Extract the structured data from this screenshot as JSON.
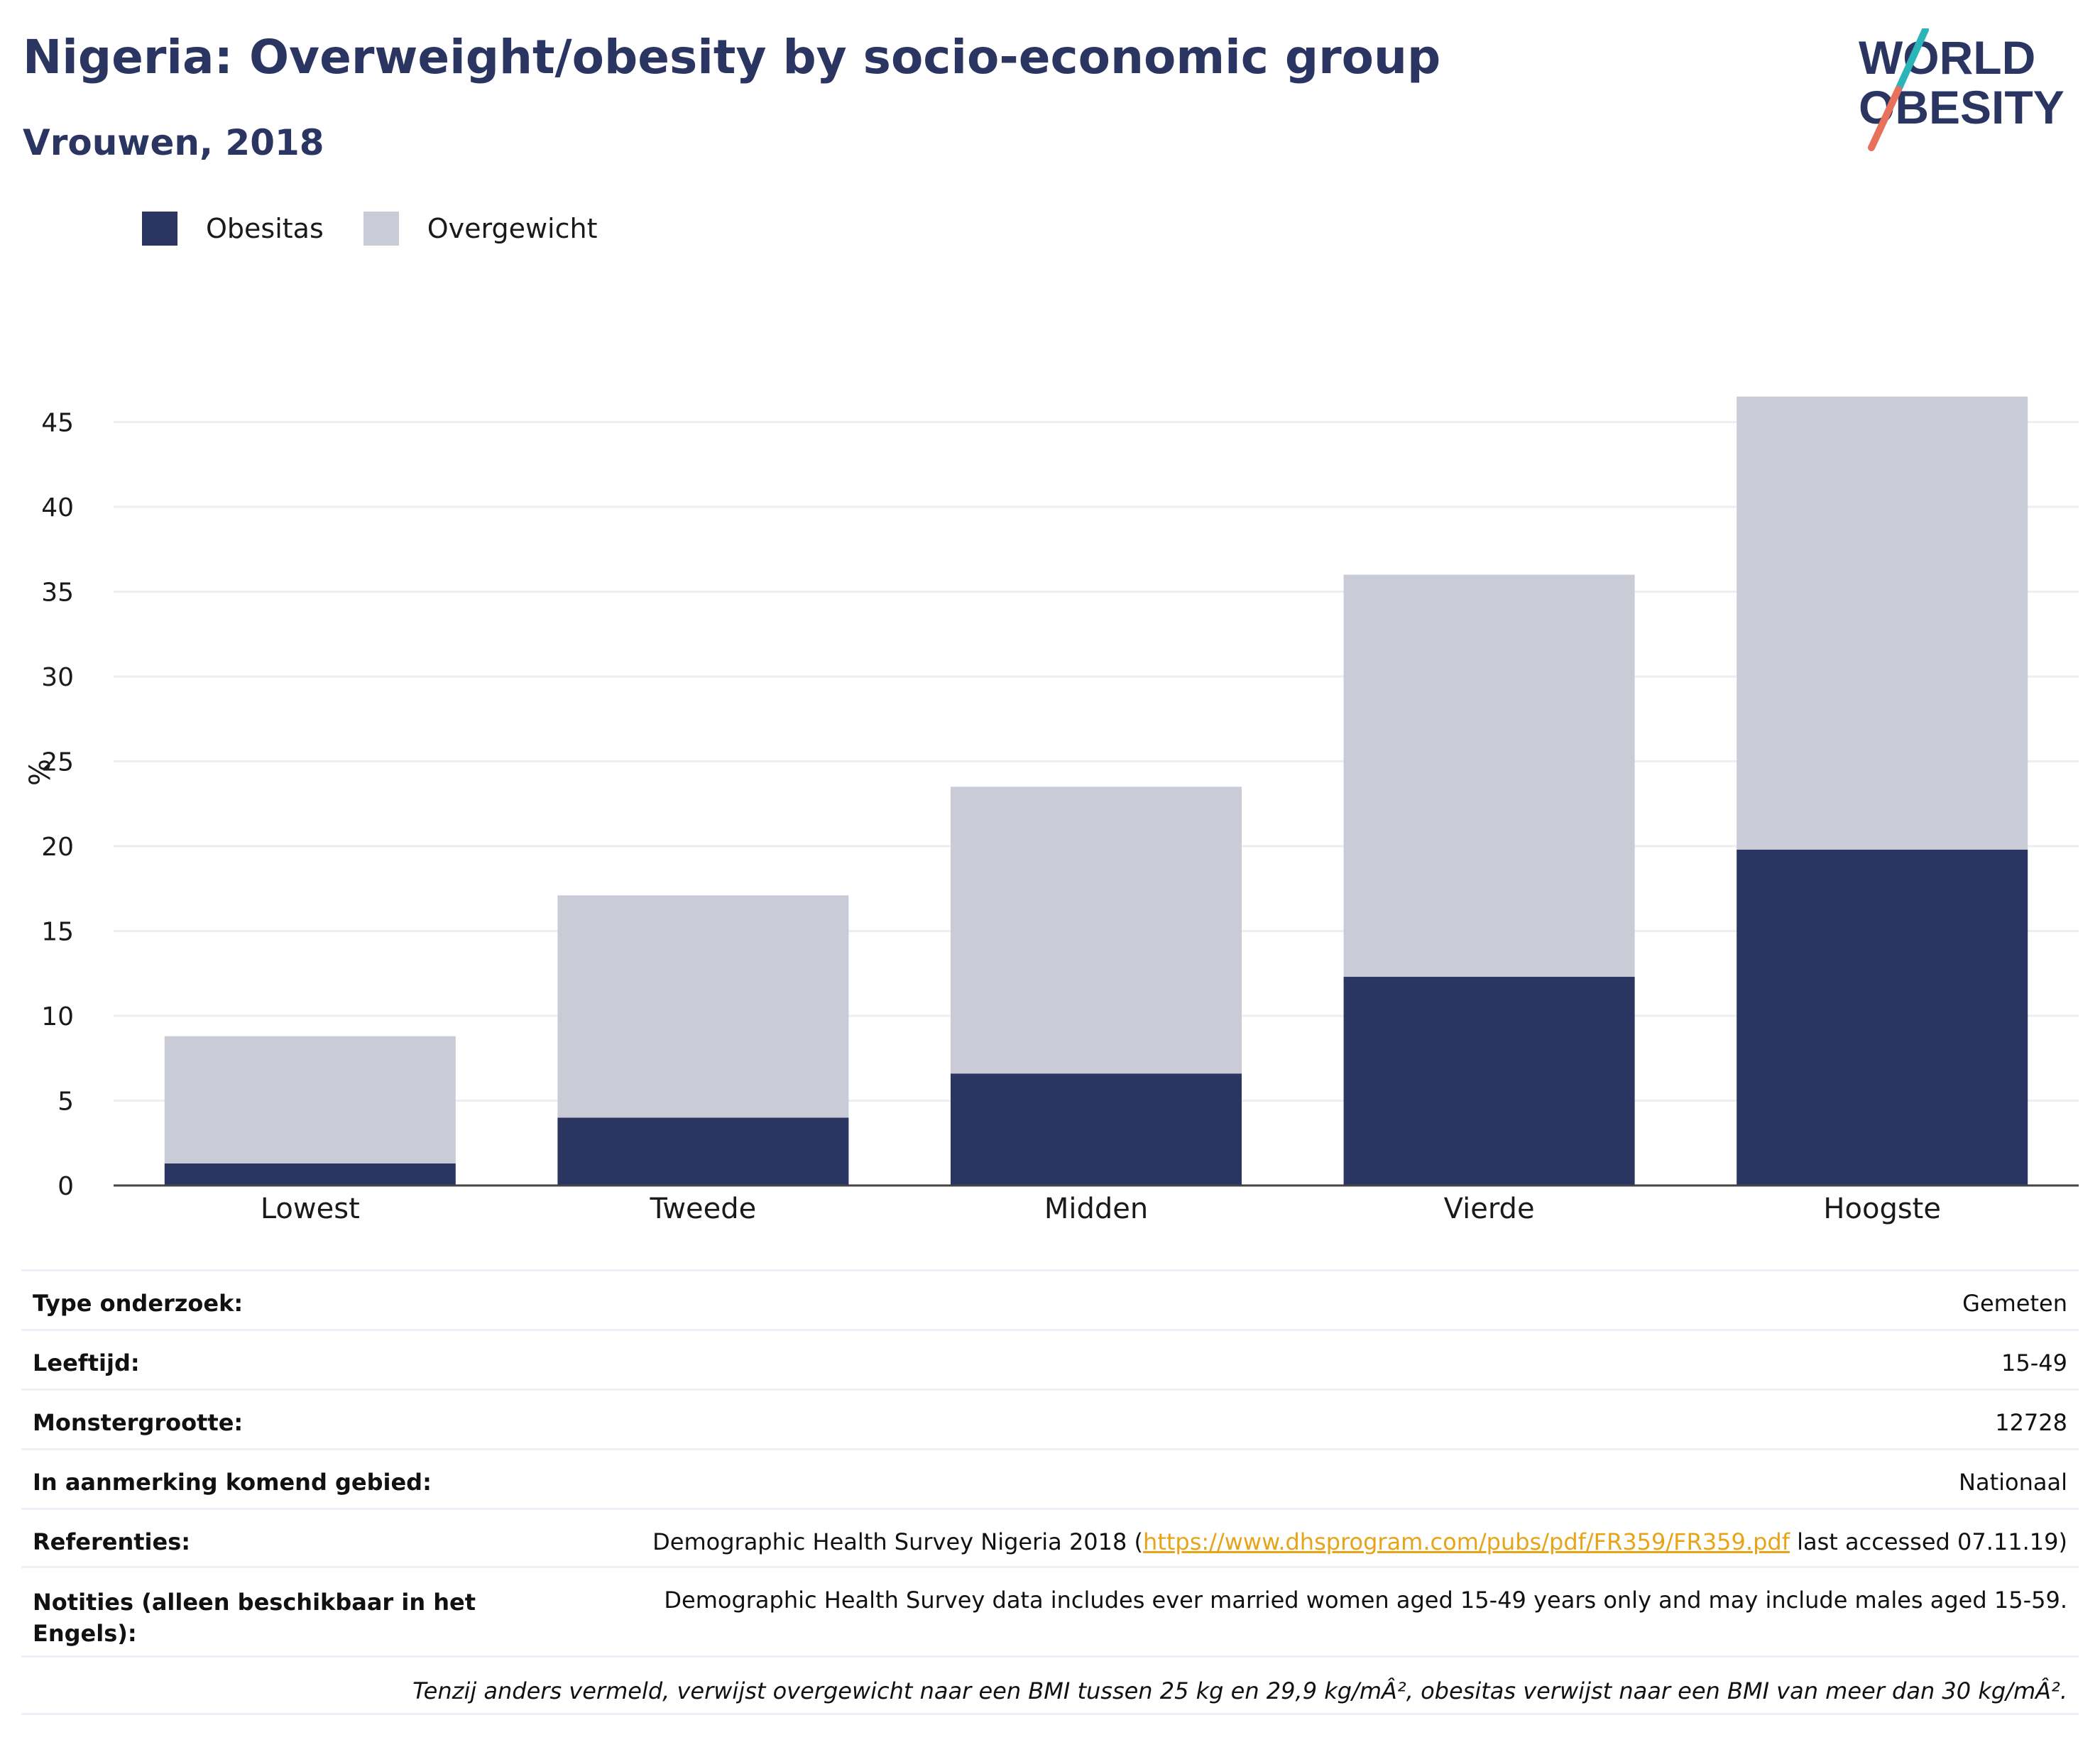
{
  "header": {
    "title": "Nigeria: Overweight/obesity by socio-economic group",
    "subtitle": "Vrouwen, 2018"
  },
  "logo": {
    "line1": "WORLD",
    "line2": "OBESITY",
    "colors": {
      "text": "#2a3561",
      "slash_top": "#2bb5b8",
      "slash_bottom": "#e8715c"
    }
  },
  "chart_data": {
    "type": "bar",
    "stacked": true,
    "categories": [
      "Lowest",
      "Tweede",
      "Midden",
      "Vierde",
      "Hoogste"
    ],
    "series": [
      {
        "name": "Obesitas",
        "color": "#2a3561",
        "values": [
          1.3,
          4.0,
          6.6,
          12.3,
          19.8
        ]
      },
      {
        "name": "Overgewicht",
        "color": "#c9cbd7",
        "values": [
          7.5,
          13.1,
          16.9,
          23.7,
          26.7
        ]
      }
    ],
    "totals": [
      8.8,
      17.1,
      23.5,
      36.0,
      46.5
    ],
    "ylabel": "%",
    "xlabel": "",
    "ylim": [
      0,
      47
    ],
    "yticks": [
      0,
      5,
      10,
      15,
      20,
      25,
      30,
      35,
      40,
      45
    ],
    "grid": true,
    "legend_position": "top-left"
  },
  "info": {
    "rows": [
      {
        "label": "Type onderzoek:",
        "value": "Gemeten"
      },
      {
        "label": "Leeftijd:",
        "value": "15-49"
      },
      {
        "label": "Monstergrootte:",
        "value": "12728"
      },
      {
        "label": "In aanmerking komend gebied:",
        "value": "Nationaal"
      }
    ],
    "references": {
      "label": "Referenties:",
      "text_before": "Demographic Health Survey Nigeria 2018 (",
      "link": "https://www.dhsprogram.com/pubs/pdf/FR359/FR359.pdf",
      "text_after": " last accessed 07.11.19)"
    },
    "notes": {
      "label": "Notities (alleen beschikbaar in het Engels):",
      "value": "Demographic Health Survey data includes ever married women aged 15-49 years only and may include males aged 15-59."
    },
    "footnote": "Tenzij anders vermeld, verwijst overgewicht naar een BMI tussen 25 kg en 29,9 kg/mÂ², obesitas verwijst naar een BMI van meer dan 30 kg/mÂ²."
  }
}
